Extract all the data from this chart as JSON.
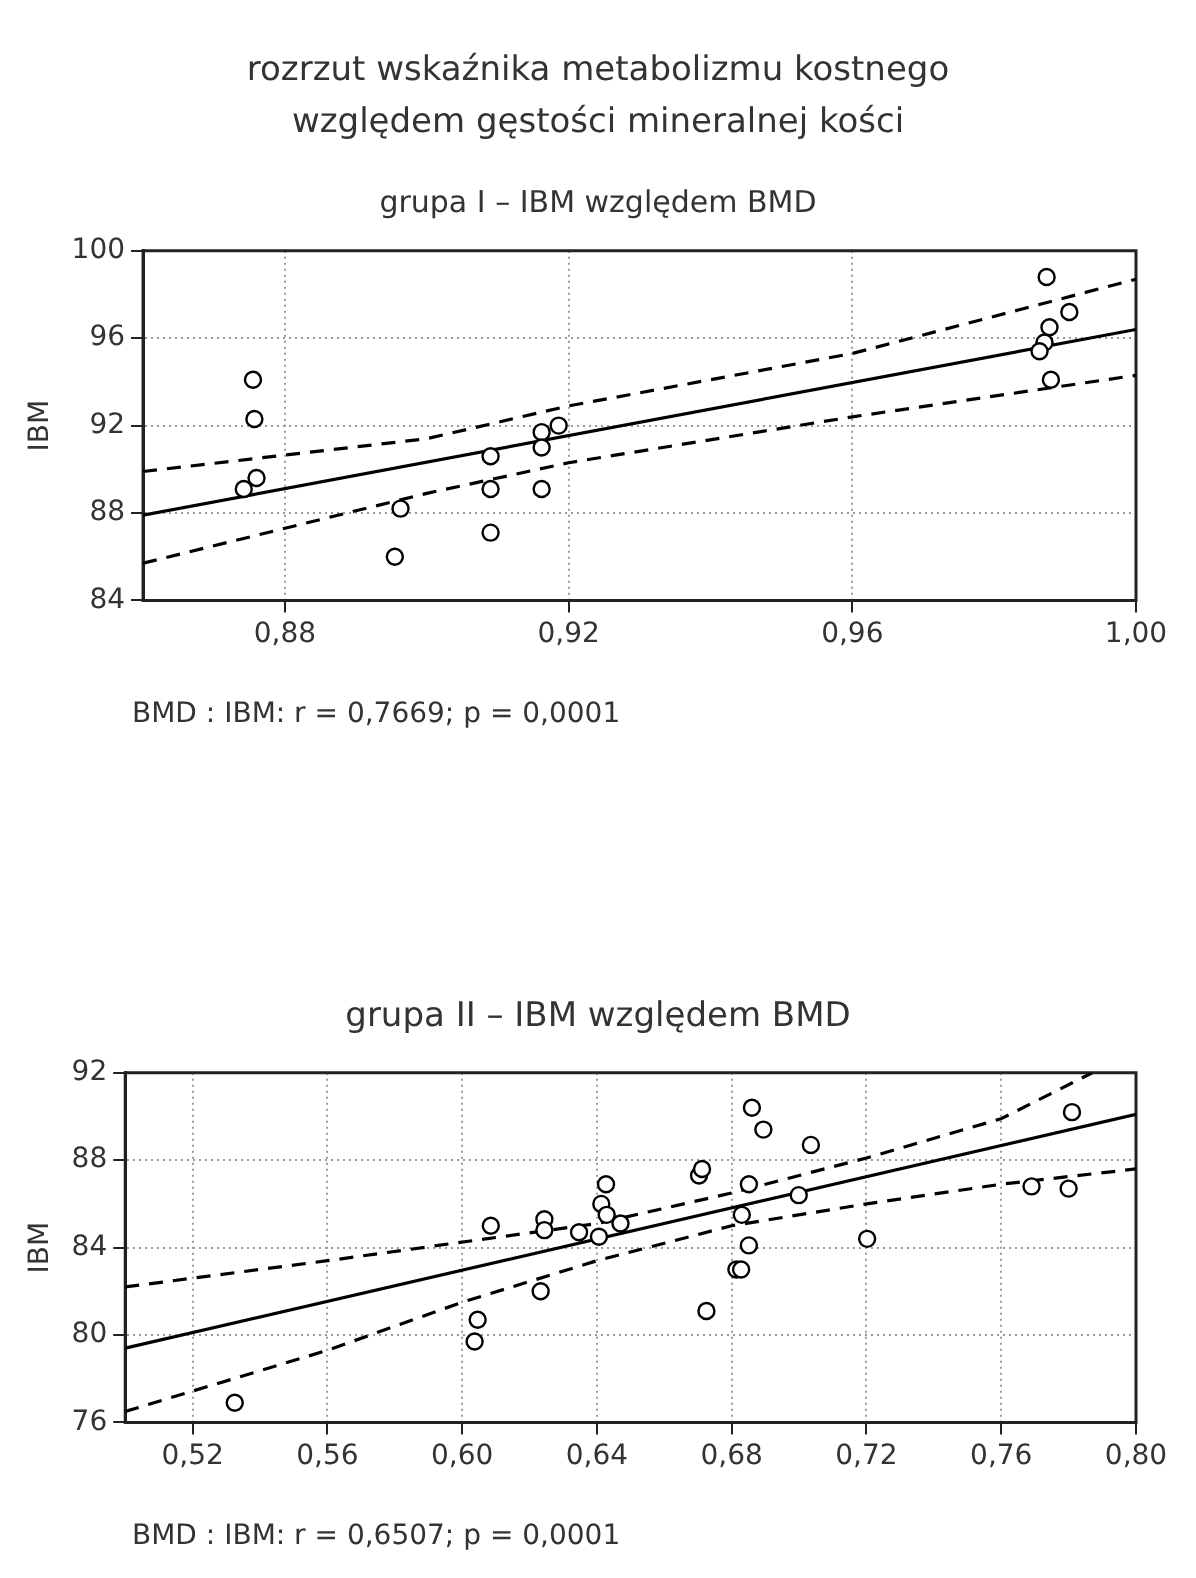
{
  "chart_data": [
    {
      "type": "scatter",
      "title": "rozrzut wskaźnika metabolizmu kostnego\nwzględem gęstości mineralnej kości",
      "subtitle": "grupa I – IBM względem BMD",
      "ylabel": "IBM",
      "annotations": [
        "BMD : IBM: r = 0,7669; p = 0,0001"
      ],
      "series": [
        {
          "color": "#000000",
          "marker": "circle",
          "x": [
            0.8742,
            0.876,
            0.8755,
            0.8757,
            0.8963,
            0.8955,
            0.909,
            0.909,
            0.909,
            0.9162,
            0.9162,
            0.9162,
            0.9186,
            0.9874,
            0.9878,
            0.9871,
            0.9864,
            0.9906,
            0.988
          ],
          "values": [
            89.1,
            89.6,
            94.1,
            92.3,
            88.2,
            86.0,
            90.6,
            89.1,
            87.1,
            91.7,
            91.0,
            89.1,
            92.0,
            98.8,
            96.5,
            95.8,
            95.4,
            97.2,
            94.1
          ]
        },
        {
          "type": "line",
          "color": "#000000",
          "line_style": "solid",
          "x": [
            0.86,
            1.0
          ],
          "values": [
            87.9,
            96.4
          ]
        },
        {
          "type": "line",
          "color": "#000000",
          "line_style": "dashed",
          "x": [
            0.86,
            0.9,
            0.92,
            0.96,
            1.0
          ],
          "values": [
            89.9,
            91.4,
            92.9,
            95.3,
            98.7
          ]
        },
        {
          "type": "line",
          "color": "#000000",
          "line_style": "dashed",
          "x": [
            0.86,
            0.9,
            0.92,
            0.96,
            1.0
          ],
          "values": [
            85.7,
            88.9,
            90.3,
            92.4,
            94.3
          ]
        }
      ],
      "xlim": [
        0.86,
        1.0
      ],
      "xticks": [
        {
          "value": 0.88,
          "label": "0,88"
        },
        {
          "value": 0.92,
          "label": "0,92"
        },
        {
          "value": 0.96,
          "label": "0,96"
        },
        {
          "value": 1.0,
          "label": "1,00"
        }
      ],
      "ylim": [
        84,
        100
      ],
      "yticks": [
        84,
        88,
        92,
        96,
        100
      ],
      "grid": true,
      "legend": false
    },
    {
      "type": "scatter",
      "title": "grupa II – IBM względem BMD",
      "ylabel": "IBM",
      "annotations": [
        "BMD : IBM: r = 0,6507; p = 0,0001"
      ],
      "series": [
        {
          "color": "#000000",
          "marker": "circle",
          "x": [
            0.5325,
            0.6046,
            0.6037,
            0.6085,
            0.6233,
            0.6244,
            0.6244,
            0.6347,
            0.6406,
            0.6413,
            0.6427,
            0.6429,
            0.647,
            0.6703,
            0.6712,
            0.6725,
            0.6814,
            0.6828,
            0.683,
            0.6851,
            0.6851,
            0.686,
            0.6894,
            0.6999,
            0.7035,
            0.7202,
            0.769,
            0.78,
            0.781
          ],
          "values": [
            76.9,
            80.7,
            79.7,
            85.0,
            82.0,
            85.3,
            84.8,
            84.7,
            84.5,
            86.0,
            86.9,
            85.5,
            85.1,
            87.3,
            87.6,
            81.1,
            83.0,
            83.0,
            85.5,
            86.9,
            84.1,
            90.4,
            89.4,
            86.4,
            88.7,
            84.4,
            86.8,
            86.7,
            90.2
          ]
        },
        {
          "type": "line",
          "color": "#000000",
          "line_style": "solid",
          "x": [
            0.5,
            0.8
          ],
          "values": [
            79.4,
            90.1
          ]
        },
        {
          "type": "line",
          "color": "#000000",
          "line_style": "dashed",
          "x": [
            0.5,
            0.56,
            0.64,
            0.68,
            0.72,
            0.76,
            0.787
          ],
          "values": [
            82.2,
            83.4,
            85.1,
            86.5,
            88.1,
            89.9,
            92.0
          ]
        },
        {
          "type": "line",
          "color": "#000000",
          "line_style": "dashed",
          "x": [
            0.5,
            0.56,
            0.6,
            0.64,
            0.68,
            0.72,
            0.76,
            0.8
          ],
          "values": [
            76.5,
            79.3,
            81.5,
            83.4,
            85.0,
            86.0,
            86.9,
            87.6
          ]
        }
      ],
      "xlim": [
        0.5,
        0.8
      ],
      "xticks": [
        {
          "value": 0.52,
          "label": "0,52"
        },
        {
          "value": 0.56,
          "label": "0,56"
        },
        {
          "value": 0.6,
          "label": "0,60"
        },
        {
          "value": 0.64,
          "label": "0,64"
        },
        {
          "value": 0.68,
          "label": "0,68"
        },
        {
          "value": 0.72,
          "label": "0,72"
        },
        {
          "value": 0.76,
          "label": "0,76"
        },
        {
          "value": 0.8,
          "label": "0,80"
        }
      ],
      "ylim": [
        76,
        92
      ],
      "yticks": [
        76,
        80,
        84,
        88,
        92
      ],
      "grid": true,
      "legend": false
    }
  ]
}
